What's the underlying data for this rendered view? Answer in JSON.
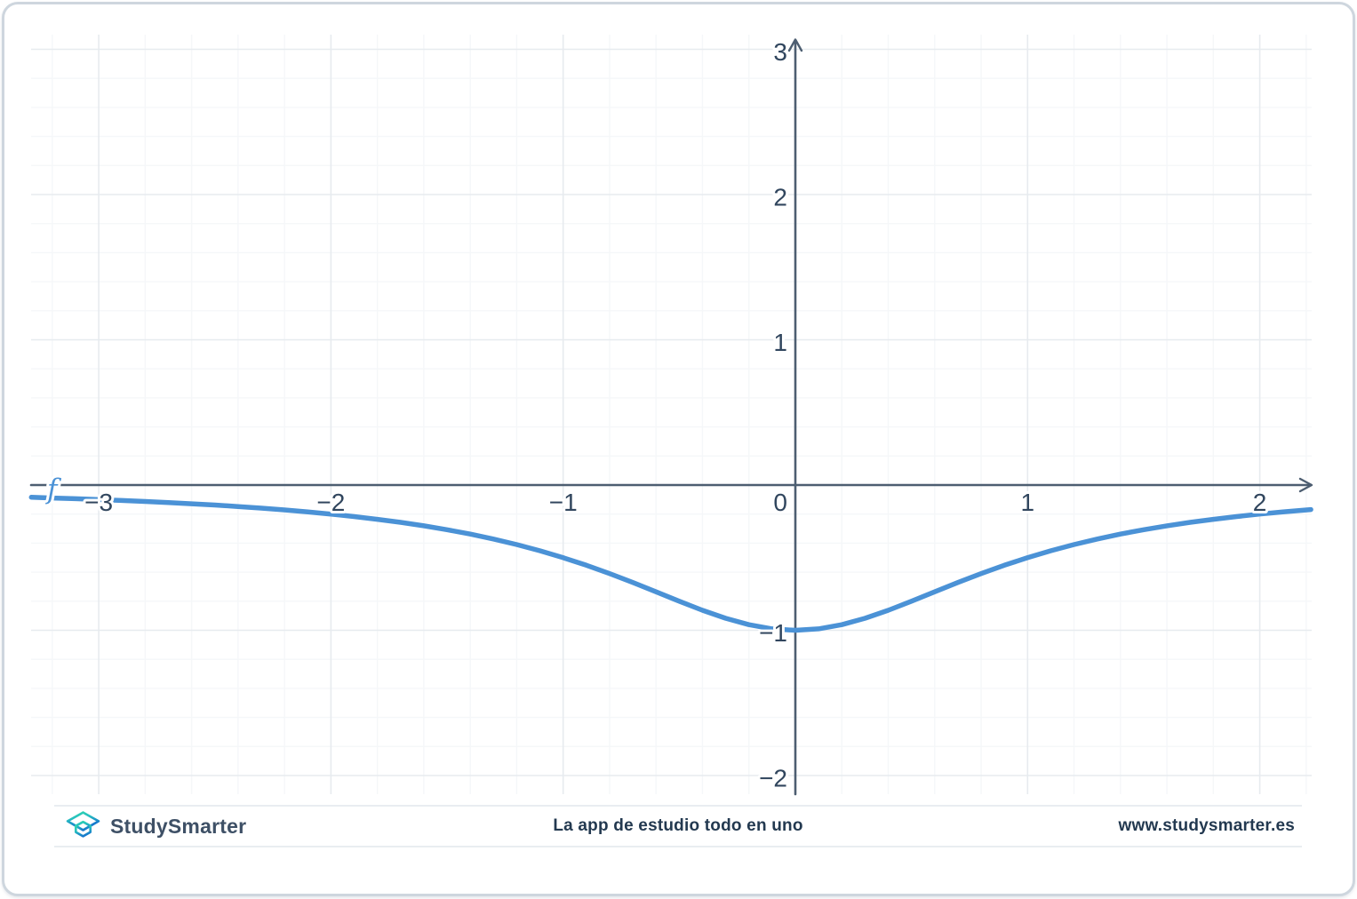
{
  "card": {
    "background": "#ffffff",
    "border_color": "#ced6de"
  },
  "chart_data": {
    "type": "line",
    "title": "",
    "function": "f(x) = -1/(1+x^2)",
    "curve_label": "f",
    "xlim": [
      -3.29,
      2.225
    ],
    "ylim": [
      -2.13,
      3.1
    ],
    "grid": {
      "on": true,
      "minor_step": 0.2,
      "major_step": 1,
      "minor_color": "#f5f7f9",
      "major_color": "#e7ebef"
    },
    "axis_color": "#4d5e71",
    "tick_color": "#31465e",
    "x_ticks": [
      {
        "v": -3,
        "label": "−3"
      },
      {
        "v": -2,
        "label": "−2"
      },
      {
        "v": -1,
        "label": "−1"
      },
      {
        "v": 0,
        "label": "0"
      },
      {
        "v": 1,
        "label": "1"
      },
      {
        "v": 2,
        "label": "2"
      }
    ],
    "y_ticks": [
      {
        "v": 3,
        "label": "3"
      },
      {
        "v": 2,
        "label": "2"
      },
      {
        "v": 1,
        "label": "1"
      },
      {
        "v": -1,
        "label": "−1"
      },
      {
        "v": -2,
        "label": "−2"
      }
    ],
    "series": [
      {
        "name": "f",
        "color": "#4b92d6",
        "width": 5.5,
        "points": [
          [
            -3.29,
            -0.0846
          ],
          [
            -3.2,
            -0.089
          ],
          [
            -3.1,
            -0.0943
          ],
          [
            -3.0,
            -0.1
          ],
          [
            -2.9,
            -0.1063
          ],
          [
            -2.8,
            -0.1131
          ],
          [
            -2.7,
            -0.1206
          ],
          [
            -2.6,
            -0.1289
          ],
          [
            -2.5,
            -0.1379
          ],
          [
            -2.4,
            -0.1479
          ],
          [
            -2.3,
            -0.159
          ],
          [
            -2.2,
            -0.1712
          ],
          [
            -2.1,
            -0.1848
          ],
          [
            -2.0,
            -0.2
          ],
          [
            -1.9,
            -0.2169
          ],
          [
            -1.8,
            -0.2358
          ],
          [
            -1.7,
            -0.2571
          ],
          [
            -1.6,
            -0.2809
          ],
          [
            -1.5,
            -0.3077
          ],
          [
            -1.4,
            -0.3378
          ],
          [
            -1.3,
            -0.3717
          ],
          [
            -1.2,
            -0.4098
          ],
          [
            -1.1,
            -0.4525
          ],
          [
            -1.0,
            -0.5
          ],
          [
            -0.9,
            -0.5525
          ],
          [
            -0.8,
            -0.6098
          ],
          [
            -0.7,
            -0.6711
          ],
          [
            -0.6,
            -0.7353
          ],
          [
            -0.5,
            -0.8
          ],
          [
            -0.4,
            -0.8621
          ],
          [
            -0.3,
            -0.9174
          ],
          [
            -0.2,
            -0.9615
          ],
          [
            -0.1,
            -0.9901
          ],
          [
            0,
            -1.0
          ],
          [
            0.1,
            -0.9901
          ],
          [
            0.2,
            -0.9615
          ],
          [
            0.3,
            -0.9174
          ],
          [
            0.4,
            -0.8621
          ],
          [
            0.5,
            -0.8
          ],
          [
            0.6,
            -0.7353
          ],
          [
            0.7,
            -0.6711
          ],
          [
            0.8,
            -0.6098
          ],
          [
            0.9,
            -0.5525
          ],
          [
            1.0,
            -0.5
          ],
          [
            1.1,
            -0.4525
          ],
          [
            1.2,
            -0.4098
          ],
          [
            1.3,
            -0.3717
          ],
          [
            1.4,
            -0.3378
          ],
          [
            1.5,
            -0.3077
          ],
          [
            1.6,
            -0.2809
          ],
          [
            1.7,
            -0.2571
          ],
          [
            1.8,
            -0.2358
          ],
          [
            1.9,
            -0.2169
          ],
          [
            2.0,
            -0.2
          ],
          [
            2.1,
            -0.1848
          ],
          [
            2.22,
            -0.1687
          ]
        ]
      }
    ],
    "legend": {
      "position": "none"
    }
  },
  "footer": {
    "brand": "StudySmarter",
    "tagline": "La app de estudio todo en uno",
    "website": "www.studysmarter.es",
    "logo_teal": "#2fd5ae",
    "logo_blue": "#1779cc",
    "divider_color": "#e9edf1"
  }
}
